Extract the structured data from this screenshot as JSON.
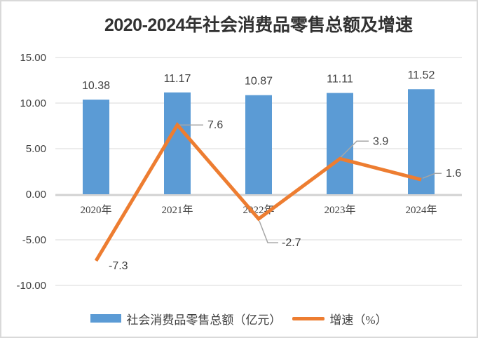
{
  "window": {
    "background": "#FFFFFF",
    "border_color": "#D9D9D9"
  },
  "chart_data": {
    "type": "bar",
    "subtype": "bar-line-combo",
    "title": "2020-2024年社会消费品零售总额及增速",
    "title_prefix": "2020-2024",
    "title_suffix": "年社会消费品零售总额及增速",
    "categories": [
      "2020年",
      "2021年",
      "2022年",
      "2023年",
      "2024年"
    ],
    "series": [
      {
        "name": "社会消费品零售总额（亿元）",
        "type": "bar",
        "color": "#5B9BD5",
        "values": [
          10.38,
          11.17,
          10.87,
          11.11,
          11.52
        ],
        "labels": [
          "10.38",
          "11.17",
          "10.87",
          "11.11",
          "11.52"
        ]
      },
      {
        "name": "增速（%）",
        "type": "line",
        "color": "#ED7D31",
        "values": [
          -7.3,
          7.6,
          -2.7,
          3.9,
          1.6
        ],
        "labels": [
          "-7.3",
          "7.6",
          "-2.7",
          "3.9",
          "1.6"
        ]
      }
    ],
    "y_axis": {
      "range": [
        -10,
        15
      ],
      "tick_interval": 5,
      "ticks": [
        {
          "value": 15,
          "label": "15.00"
        },
        {
          "value": 10,
          "label": "10.00"
        },
        {
          "value": 5,
          "label": "5.00"
        },
        {
          "value": 0,
          "label": "0.00"
        },
        {
          "value": -5,
          "label": "-5.00"
        },
        {
          "value": -10,
          "label": "-10.00"
        }
      ],
      "grid": true,
      "gridline_color": "#D9D9D9",
      "axis_line_color": "#CFCFCF",
      "text_color": "#404040"
    },
    "leader_line_color": "#A6A6A6",
    "legend": {
      "position": "bottom",
      "entries": [
        {
          "label": "社会消费品零售总额（亿元）",
          "swatch": "bar",
          "color": "#5B9BD5"
        },
        {
          "label": "增速（%）",
          "swatch": "line",
          "color": "#ED7D31"
        }
      ]
    }
  }
}
